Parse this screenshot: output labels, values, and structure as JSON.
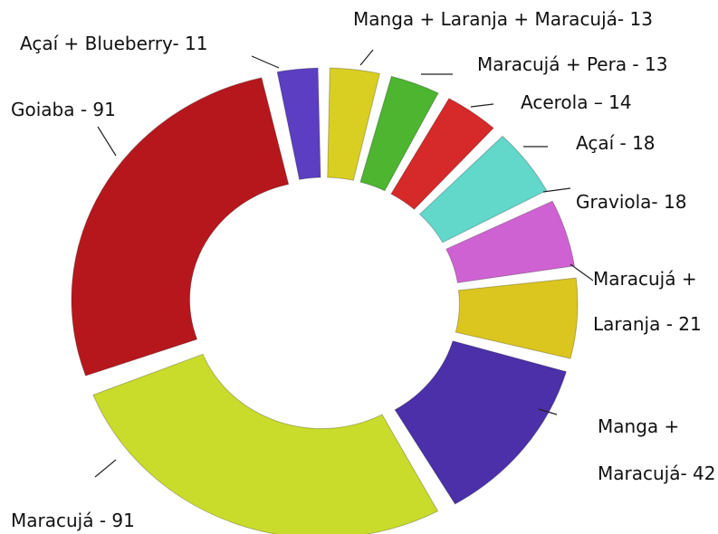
{
  "chart_data": {
    "type": "donut",
    "values": [
      11,
      13,
      13,
      14,
      18,
      18,
      21,
      42,
      91,
      91
    ],
    "value_labels": [
      [
        "Açaí + Blueberry- 11"
      ],
      [
        "Manga + Laranja + Maracujá- 13"
      ],
      [
        "Maracujá + Pera - 13"
      ],
      [
        "Acerola – 14"
      ],
      [
        "Açaí - 18"
      ],
      [
        "Graviola- 18"
      ],
      [
        "Maracujá +",
        "Laranja - 21"
      ],
      [
        "Manga +",
        "Maracujá- 42"
      ],
      [
        "Maracujá - 91"
      ],
      [
        "Goiaba - 91"
      ]
    ],
    "colors": [
      "#5b3ec2",
      "#d9cf22",
      "#4db52f",
      "#d6292a",
      "#62d8cb",
      "#cf62d2",
      "#dbc51f",
      "#4b30a9",
      "#cadc2b",
      "#b6171d"
    ]
  }
}
